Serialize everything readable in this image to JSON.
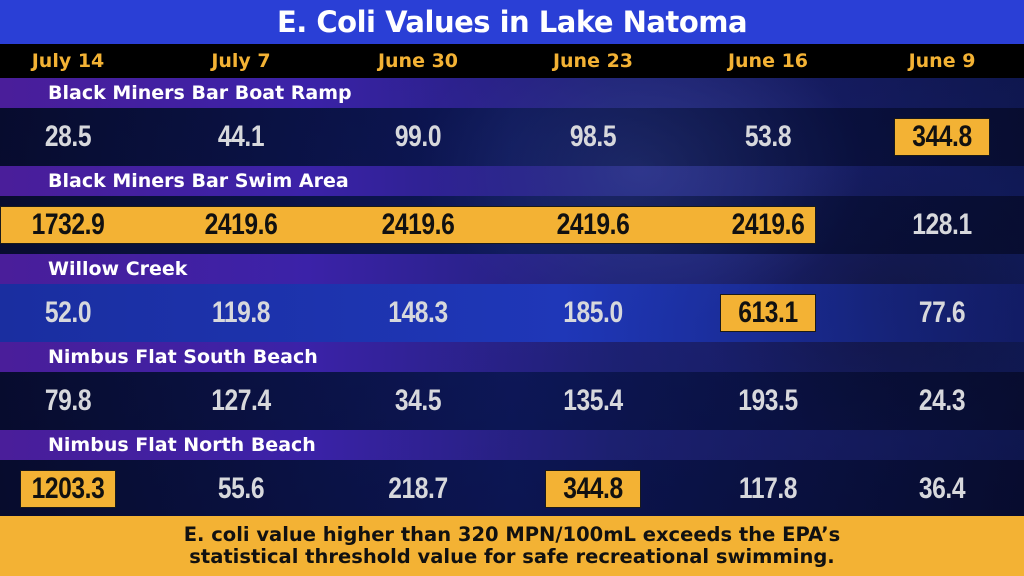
{
  "title": "E. Coli Values in Lake Natoma",
  "footer_note": "E. coli value higher than 320 MPN/100mL exceeds the EPA’s\nstatistical threshold value for safe recreational swimming.",
  "colors": {
    "title_bar": "#2a3fd6",
    "accent": "#f3b234",
    "header_background": "#000000",
    "normal_value_text": "#d7d8dc",
    "exceeding_value_text": "#111111"
  },
  "chart_data": {
    "type": "table",
    "title": "E. Coli Values in Lake Natoma",
    "columns": [
      "July 14",
      "July 7",
      "June 30",
      "June 23",
      "June 16",
      "June 9"
    ],
    "threshold": 320,
    "rows": [
      {
        "site": "Black Miners Bar Boat Ramp",
        "values": [
          "28.5",
          "44.1",
          "99.0",
          "98.5",
          "53.8",
          "344.8"
        ]
      },
      {
        "site": "Black Miners Bar Swim Area",
        "values": [
          "1732.9",
          "2419.6",
          "2419.6",
          "2419.6",
          "2419.6",
          "128.1"
        ]
      },
      {
        "site": "Willow Creek",
        "values": [
          "52.0",
          "119.8",
          "148.3",
          "185.0",
          "613.1",
          "77.6"
        ]
      },
      {
        "site": "Nimbus Flat South Beach",
        "values": [
          "79.8",
          "127.4",
          "34.5",
          "135.4",
          "193.5",
          "24.3"
        ]
      },
      {
        "site": "Nimbus Flat North Beach",
        "values": [
          "1203.3",
          "55.6",
          "218.7",
          "344.8",
          "117.8",
          "36.4"
        ]
      }
    ]
  }
}
